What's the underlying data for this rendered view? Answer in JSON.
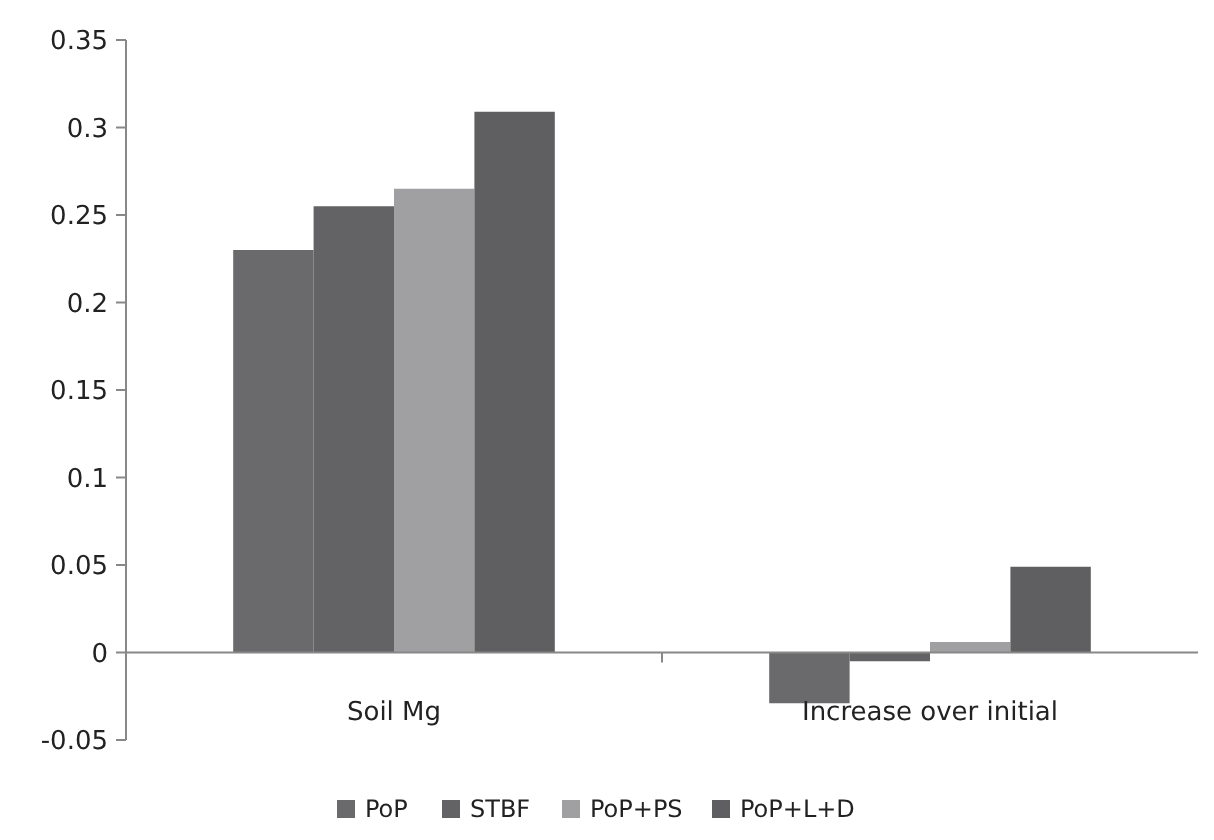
{
  "chart_data": {
    "type": "bar",
    "categories": [
      "Soil Mg",
      "Increase over initial"
    ],
    "series": [
      {
        "name": "PoP",
        "color": "#6a6a6c",
        "values": [
          0.23,
          -0.029
        ]
      },
      {
        "name": "STBF",
        "color": "#636365",
        "values": [
          0.255,
          -0.005
        ]
      },
      {
        "name": "PoP+PS",
        "color": "#a0a0a2",
        "values": [
          0.265,
          0.006
        ]
      },
      {
        "name": "PoP+L+D",
        "color": "#5f5f61",
        "values": [
          0.309,
          0.049
        ]
      }
    ],
    "ylim": [
      -0.05,
      0.35
    ],
    "yticks": [
      -0.05,
      0,
      0.05,
      0.1,
      0.15,
      0.2,
      0.25,
      0.3,
      0.35
    ],
    "grid": false,
    "legend": "bottom"
  }
}
